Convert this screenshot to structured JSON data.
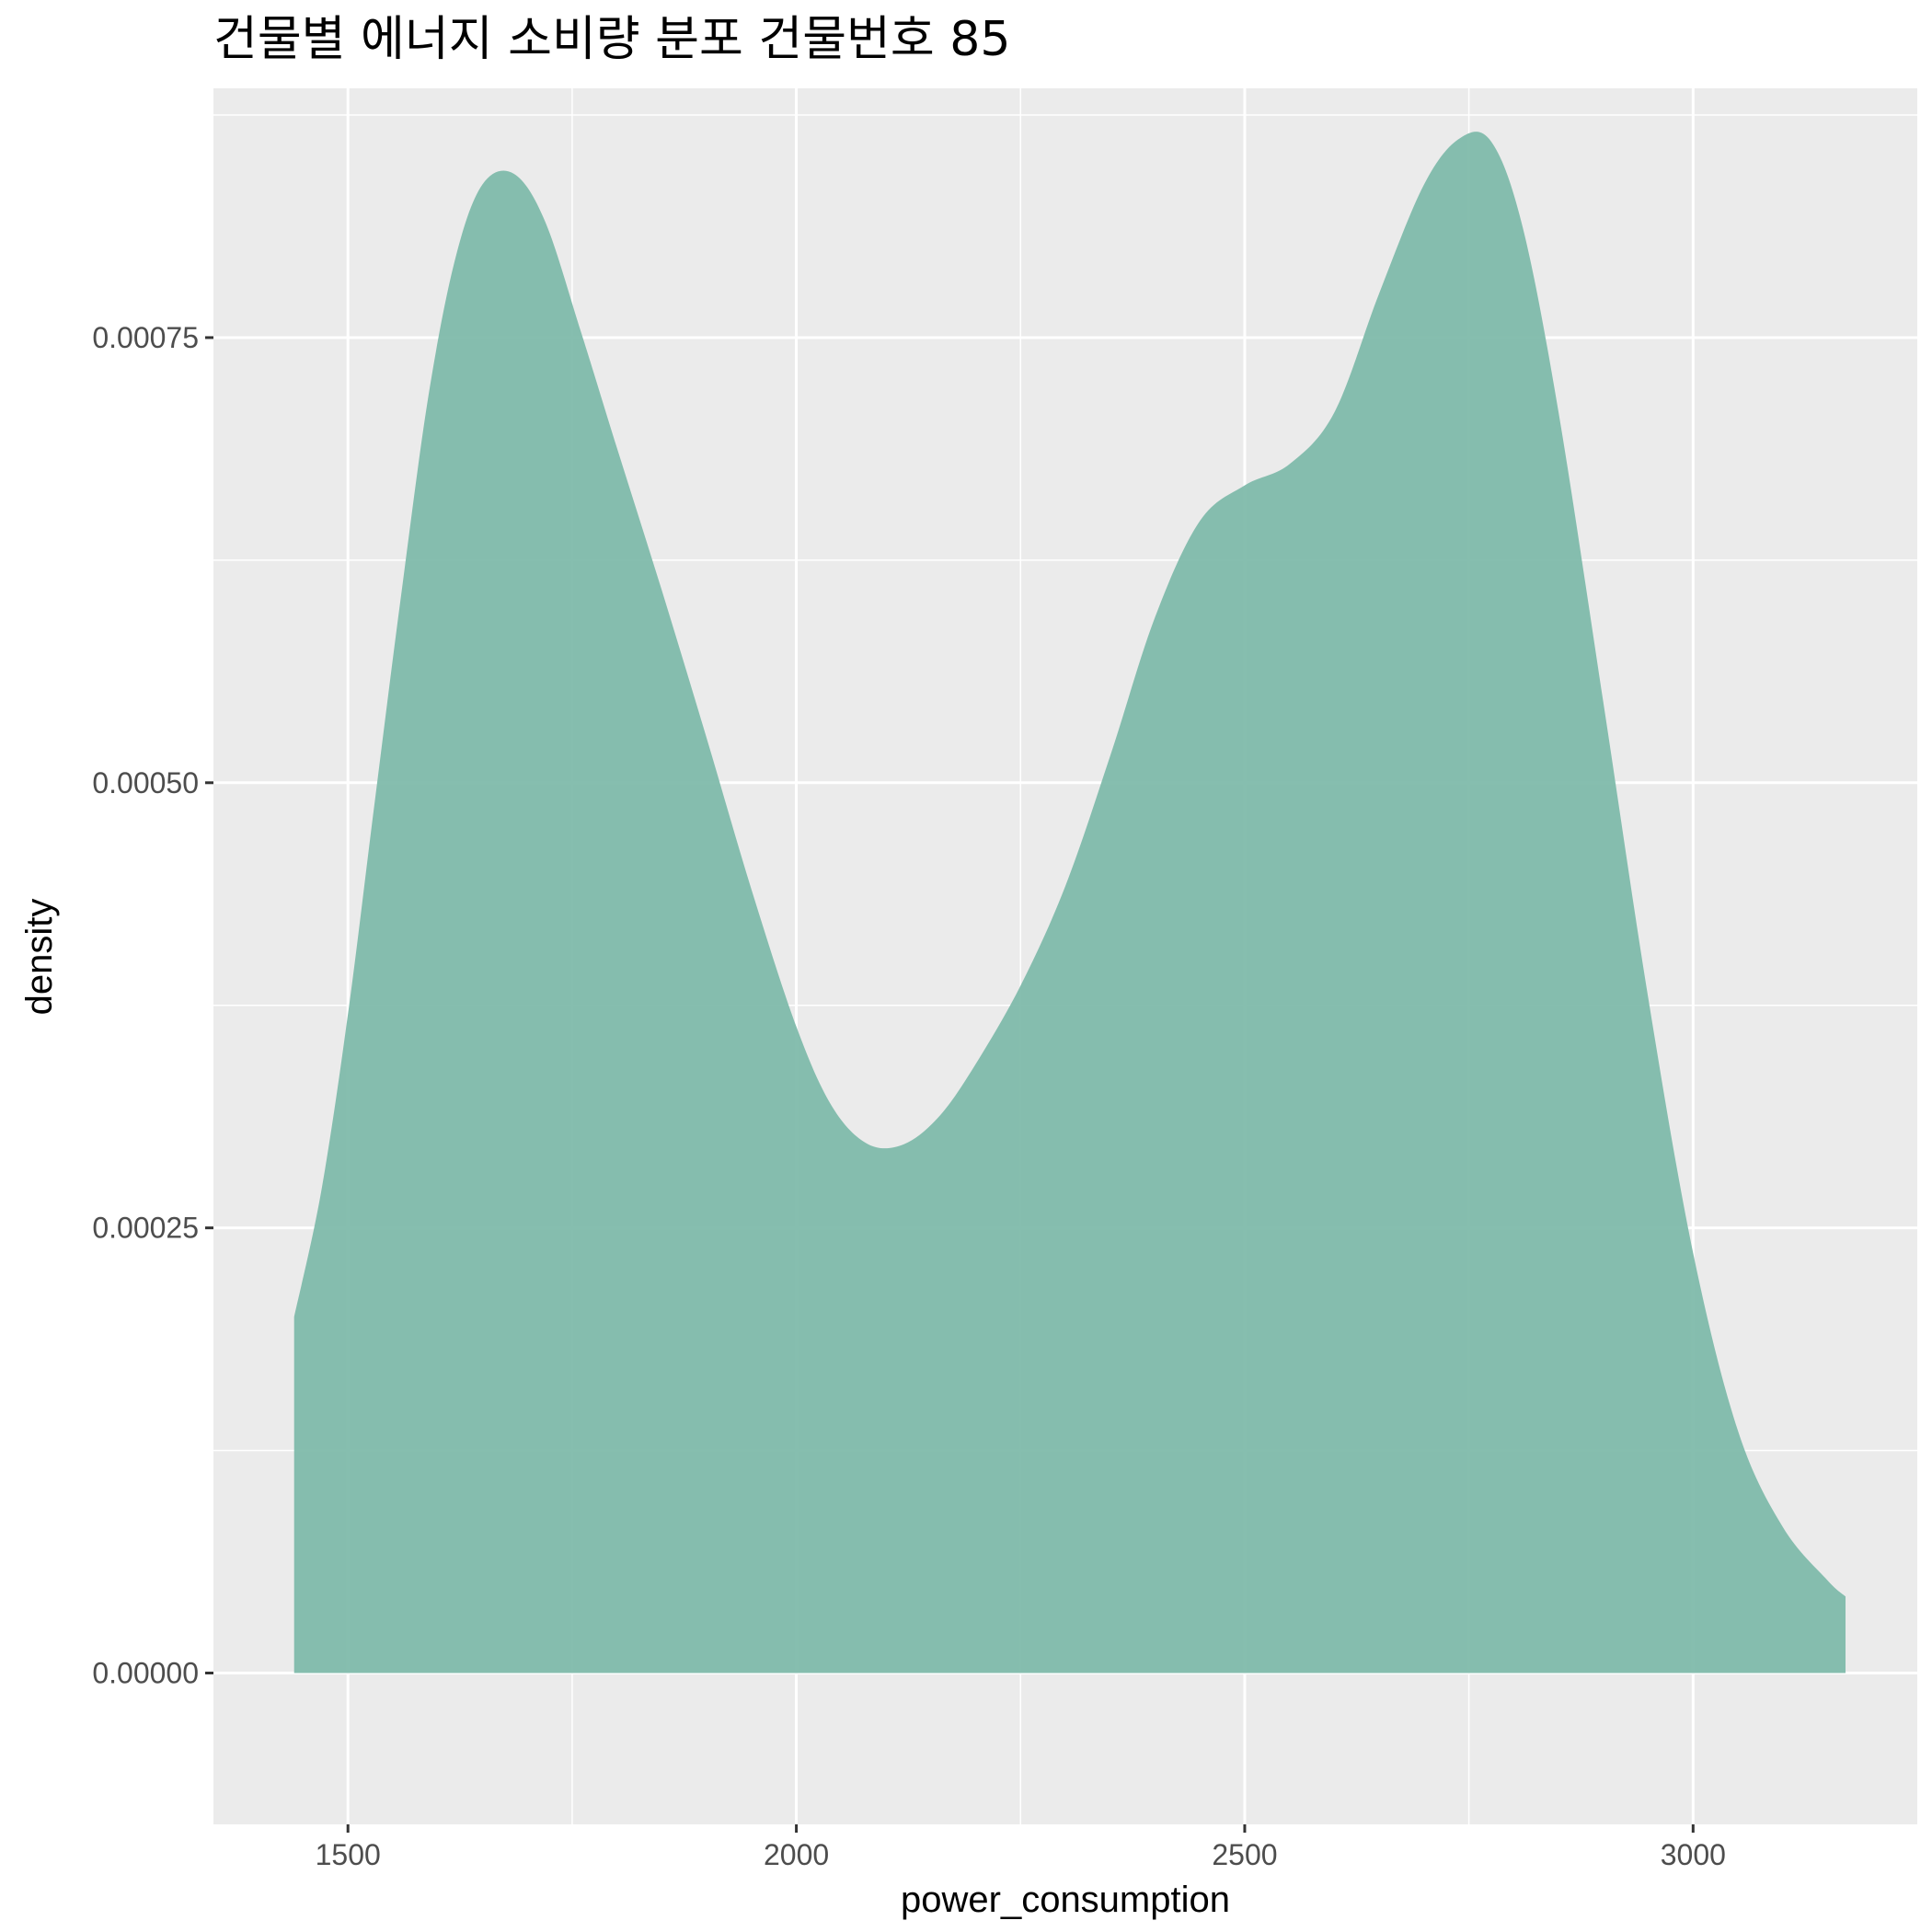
{
  "chart_data": {
    "type": "area",
    "title": "건물별 에너지 소비량 분포 건물번호 85",
    "xlabel": "power_consumption",
    "ylabel": "density",
    "xlim": [
      1350,
      3250
    ],
    "ylim": [
      -8.5e-05,
      0.00089
    ],
    "x_ticks": [
      1500,
      2000,
      2500,
      3000
    ],
    "x_tick_labels": [
      "1500",
      "2000",
      "2500",
      "3000"
    ],
    "y_ticks": [
      0,
      0.00025,
      0.0005,
      0.00075
    ],
    "y_tick_labels": [
      "0.00000",
      "0.00025",
      "0.00050",
      "0.00075"
    ],
    "grid": true,
    "fill_color": "#7fbaab",
    "series": [
      {
        "x": [
          1440,
          1470,
          1500,
          1530,
          1560,
          1590,
          1620,
          1650,
          1685,
          1720,
          1760,
          1800,
          1850,
          1900,
          1950,
          2000,
          2040,
          2080,
          2120,
          2160,
          2200,
          2250,
          2300,
          2350,
          2400,
          2450,
          2500,
          2550,
          2600,
          2650,
          2700,
          2740,
          2775,
          2810,
          2850,
          2900,
          2950,
          3000,
          3050,
          3100,
          3150,
          3170
        ],
        "y": [
          0.0002,
          0.00027,
          0.00037,
          0.00049,
          0.000608,
          0.000718,
          0.000795,
          0.000836,
          0.000842,
          0.000815,
          0.000753,
          0.000688,
          0.000608,
          0.000525,
          0.00044,
          0.000363,
          0.000318,
          0.000297,
          0.000297,
          0.000313,
          0.000342,
          0.000386,
          0.000442,
          0.000515,
          0.000593,
          0.000647,
          0.000667,
          0.000679,
          0.000708,
          0.000775,
          0.000836,
          0.000862,
          0.00086,
          0.000812,
          0.000708,
          0.000545,
          0.000379,
          0.000236,
          0.000136,
          8.2e-05,
          5.2e-05,
          4.3e-05
        ]
      }
    ]
  }
}
